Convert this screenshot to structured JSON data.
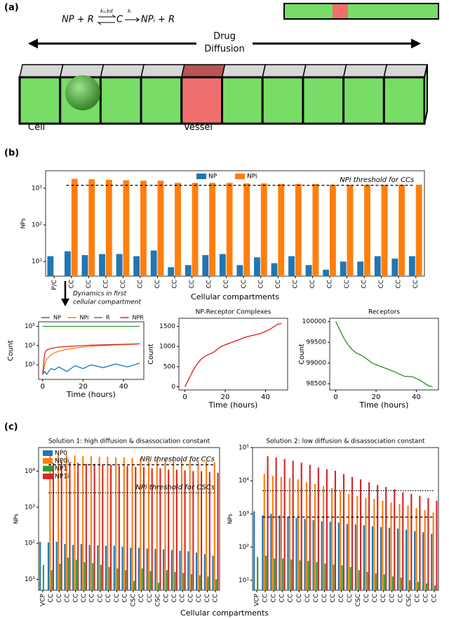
{
  "panels": [
    "(a)",
    "(b)",
    "(c)"
  ],
  "diagram": {
    "eq_left": "NP + R",
    "rates_1": "kₐ,kd",
    "complex": "C",
    "rate_2": "kᵢ",
    "eq_right": "NPᵢ + R",
    "drug": "Drug",
    "diffusion": "Diffusion",
    "cell": "Cell",
    "vessel": "Vessel"
  },
  "annotations": [
    "Dynamics in first",
    "cellular compartment"
  ],
  "chart_data": [
    {
      "type": "bar",
      "yscale": "log",
      "ylabel": "NPs",
      "xlabel": "Cellular compartments",
      "legend": "upper center",
      "categories": [
        "P/C",
        "CC",
        "CC",
        "CC",
        "CC",
        "CC",
        "CC",
        "CC",
        "CC",
        "CC",
        "CC",
        "CC",
        "CC",
        "CC",
        "CC",
        "CC",
        "CC",
        "CC",
        "CC",
        "CC",
        "CC",
        "CC"
      ],
      "series": [
        {
          "name": "NP",
          "color": "#1f77b4",
          "values": [
            14,
            19,
            15,
            16,
            16,
            14,
            20,
            7,
            8,
            15,
            16,
            8,
            13,
            9,
            14,
            8,
            6,
            10,
            10,
            14,
            12,
            14
          ]
        },
        {
          "name": "NPi",
          "color": "#ff7f0e",
          "values": [
            null,
            1800,
            1750,
            1700,
            1650,
            1600,
            1600,
            1400,
            1400,
            1400,
            1400,
            1350,
            1350,
            1300,
            1300,
            1300,
            1250,
            1250,
            1250,
            1250,
            1250,
            1250
          ]
        }
      ],
      "ylim": [
        4,
        3000
      ],
      "yticks": [
        {
          "value": 10,
          "label": "10¹"
        },
        {
          "value": 100,
          "label": "10²"
        },
        {
          "value": 1000,
          "label": "10³"
        }
      ],
      "thresholds": [
        {
          "value": 1200,
          "label": "NPi threshold for CCs",
          "style": "dashed"
        }
      ]
    },
    {
      "type": "line",
      "yscale": "log",
      "ylabel": "Count",
      "xlabel": "Time (hours)",
      "legend": "top",
      "x": [
        0,
        1,
        2,
        4,
        6,
        8,
        12,
        16,
        20,
        24,
        30,
        36,
        42,
        48
      ],
      "series": [
        {
          "name": "NP",
          "color": "#1f77b4",
          "values": [
            1,
            2,
            1,
            4,
            3,
            6,
            2,
            8,
            4,
            10,
            5,
            12,
            6,
            15
          ]
        },
        {
          "name": "NPi",
          "color": "#ff7f0e",
          "values": [
            1,
            10,
            40,
            100,
            180,
            260,
            400,
            550,
            700,
            850,
            1000,
            1150,
            1300,
            1500
          ]
        },
        {
          "name": "R",
          "color": "#2ca02c",
          "values": [
            100000,
            100000,
            100000,
            100000,
            100000,
            100000,
            100000,
            100000,
            100000,
            100000,
            100000,
            100000,
            100000,
            100000
          ]
        },
        {
          "name": "NPR",
          "color": "#d62728",
          "values": [
            1,
            150,
            350,
            500,
            600,
            680,
            800,
            900,
            1000,
            1100,
            1200,
            1300,
            1400,
            1500
          ]
        }
      ],
      "xlim": [
        -2,
        50
      ],
      "xticks": [
        0,
        20,
        40
      ],
      "ylim": [
        0.3,
        300000
      ],
      "yticks": [
        {
          "value": 10,
          "label": "10¹"
        },
        {
          "value": 1000,
          "label": "10³"
        },
        {
          "value": 100000,
          "label": "10⁵"
        }
      ]
    },
    {
      "type": "line",
      "title": "NP-Receptor Complexes",
      "ylabel": "Count",
      "xlabel": "Time (hours)",
      "x": [
        0,
        2,
        4,
        6,
        8,
        10,
        14,
        18,
        22,
        26,
        30,
        34,
        38,
        42,
        46,
        48
      ],
      "series": [
        {
          "color": "#e31a1c",
          "values": [
            0,
            200,
            400,
            560,
            680,
            760,
            850,
            1000,
            1080,
            1150,
            1230,
            1280,
            1330,
            1420,
            1550,
            1570
          ]
        }
      ],
      "xlim": [
        -3,
        51
      ],
      "xticks": [
        0,
        20,
        40
      ],
      "ylim": [
        -80,
        1700
      ],
      "yticks": [
        0,
        500,
        1000,
        1500
      ]
    },
    {
      "type": "line",
      "title": "Receptors",
      "ylabel": "Count",
      "xlabel": "Time (hours)",
      "x": [
        0,
        2,
        4,
        6,
        8,
        10,
        14,
        18,
        22,
        26,
        30,
        34,
        38,
        42,
        46,
        48
      ],
      "series": [
        {
          "color": "#2e8b22",
          "values": [
            100000,
            99800,
            99600,
            99450,
            99330,
            99250,
            99150,
            99000,
            98920,
            98850,
            98770,
            98680,
            98670,
            98580,
            98450,
            98430
          ]
        }
      ],
      "xlim": [
        -3,
        51
      ],
      "xticks": [
        0,
        20,
        40
      ],
      "ylim": [
        98350,
        100080
      ],
      "yticks": [
        98500,
        99000,
        99500,
        100000
      ]
    },
    {
      "type": "bar",
      "yscale": "log",
      "title": "Solution 1: high diffusion & disassociation constant",
      "ylabel": "NPs",
      "xlabel": "Cellular compartments",
      "legend": "upper left",
      "categories": [
        "VCP",
        "CC",
        "CC",
        "CC",
        "CC",
        "CC",
        "CC",
        "CC",
        "CC",
        "CC",
        "CC",
        "CSC",
        "CC",
        "CC",
        "CSC",
        "CC",
        "CC",
        "CC",
        "CC",
        "CC",
        "CC",
        "CC"
      ],
      "series": [
        {
          "name": "NP0",
          "color": "#1f77b4",
          "values": [
            110,
            105,
            110,
            95,
            90,
            95,
            90,
            88,
            85,
            85,
            80,
            75,
            75,
            72,
            70,
            68,
            65,
            62,
            60,
            55,
            50,
            45
          ]
        },
        {
          "name": "NP0i",
          "color": "#ff7f0e",
          "values": [
            null,
            28000,
            30000,
            28000,
            27000,
            26000,
            26000,
            25000,
            25000,
            24000,
            24000,
            23000,
            23000,
            22000,
            22000,
            21000,
            21000,
            20000,
            20000,
            20000,
            19000,
            18000
          ]
        },
        {
          "name": "NP1",
          "color": "#2ca02c",
          "values": [
            25,
            18,
            27,
            40,
            35,
            30,
            28,
            25,
            22,
            20,
            18,
            9,
            20,
            17,
            8,
            18,
            16,
            15,
            14,
            13,
            12,
            10
          ]
        },
        {
          "name": "NP1i",
          "color": "#d62728",
          "values": [
            null,
            17000,
            19000,
            18000,
            17000,
            16000,
            16000,
            15000,
            15000,
            14000,
            14000,
            13000,
            13000,
            12000,
            12000,
            11000,
            11000,
            10500,
            10000,
            10000,
            9500,
            9000
          ]
        }
      ],
      "ylim": [
        5,
        45000
      ],
      "yticks": [
        {
          "value": 10,
          "label": "10¹"
        },
        {
          "value": 100,
          "label": "10²"
        },
        {
          "value": 1000,
          "label": "10³"
        },
        {
          "value": 10000,
          "label": "10⁴"
        }
      ],
      "thresholds": [
        {
          "value": 15000,
          "label": "NPi threshold for CCs",
          "style": "dashed"
        },
        {
          "value": 2500,
          "label": "NPi threshold for CSCs",
          "style": "dotted"
        }
      ]
    },
    {
      "type": "bar",
      "yscale": "log",
      "title": "Solution 2: low diffusion & disassociation constant",
      "ylabel": "NPs",
      "categories": [
        "VCP",
        "CC",
        "CC",
        "CC",
        "CC",
        "CC",
        "CC",
        "CC",
        "CC",
        "CC",
        "CC",
        "CC",
        "CSC",
        "CC",
        "CC",
        "CC",
        "CC",
        "CC",
        "CSC",
        "CC",
        "CC",
        "CC"
      ],
      "series": [
        {
          "color": "#1f77b4",
          "values": [
            1200,
            900,
            1000,
            900,
            800,
            750,
            700,
            650,
            600,
            580,
            550,
            500,
            480,
            450,
            420,
            400,
            380,
            360,
            330,
            300,
            280,
            250
          ]
        },
        {
          "color": "#ff7f0e",
          "values": [
            null,
            16000,
            14000,
            13000,
            12000,
            11000,
            9000,
            8000,
            7000,
            6000,
            5000,
            4000,
            3500,
            3000,
            2800,
            2500,
            2200,
            2000,
            1800,
            1500,
            1300,
            1100
          ]
        },
        {
          "color": "#2ca02c",
          "values": [
            50,
            55,
            45,
            45,
            42,
            40,
            38,
            35,
            32,
            30,
            28,
            25,
            20,
            18,
            16,
            15,
            13,
            12,
            10,
            9,
            8,
            7
          ]
        },
        {
          "color": "#d62728",
          "values": [
            null,
            55000,
            50000,
            45000,
            40000,
            35000,
            30000,
            25000,
            22000,
            20000,
            16000,
            13000,
            11000,
            9000,
            7500,
            6500,
            5500,
            4500,
            4000,
            3500,
            3000,
            2500
          ]
        }
      ],
      "ylim": [
        5,
        100000
      ],
      "yticks": [
        {
          "value": 10,
          "label": "10¹"
        },
        {
          "value": 100,
          "label": "10²"
        },
        {
          "value": 1000,
          "label": "10³"
        },
        {
          "value": 10000,
          "label": "10⁴"
        },
        {
          "value": 100000,
          "label": "10⁵"
        }
      ],
      "thresholds": [
        {
          "value": 5000,
          "style": "dotted"
        },
        {
          "value": 800,
          "style": "dashed"
        }
      ]
    }
  ]
}
